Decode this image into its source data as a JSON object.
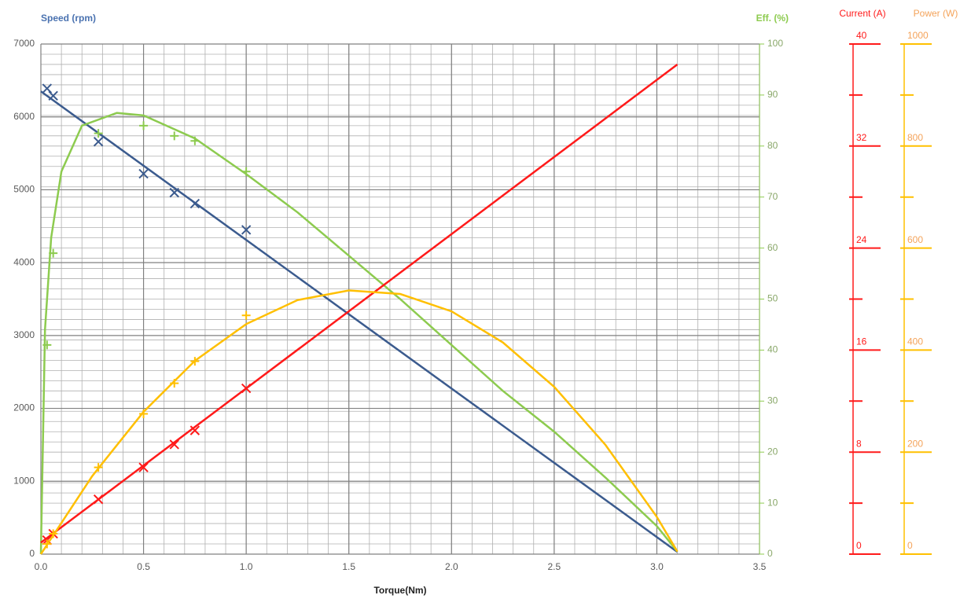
{
  "chart_data": {
    "type": "line",
    "xlabel": "Torque(Nm)",
    "xlim": [
      0,
      3.5
    ],
    "xticks": [
      {
        "value": 0,
        "label": "0.0"
      },
      {
        "value": 0.5,
        "label": "0.5"
      },
      {
        "value": 1,
        "label": "1.0"
      },
      {
        "value": 1.5,
        "label": "1.5"
      },
      {
        "value": 2,
        "label": "2.0"
      },
      {
        "value": 2.5,
        "label": "2.5"
      },
      {
        "value": 3,
        "label": "3.0"
      },
      {
        "value": 3.5,
        "label": "3.5"
      }
    ],
    "ylabel": "Speed (rpm)",
    "ylim": [
      0,
      7000
    ],
    "yticks": [
      0,
      1000,
      2000,
      3000,
      4000,
      5000,
      6000,
      7000
    ],
    "y2label": "Eff. (%)",
    "y2lim": [
      0,
      100
    ],
    "y2ticks": [
      0,
      10,
      20,
      30,
      40,
      50,
      60,
      70,
      80,
      90,
      100
    ],
    "grid": true,
    "current_axis": {
      "label": "Current (A)",
      "color": "#ff1a1a",
      "lim": [
        0,
        40
      ],
      "ticks": [
        0,
        8,
        16,
        24,
        32,
        40
      ],
      "minor_ticks": [
        4,
        12,
        20,
        28,
        36
      ]
    },
    "power_axis": {
      "label": "Power (W)",
      "color": "#ffc000",
      "lim": [
        0,
        1000
      ],
      "ticks": [
        0,
        200,
        400,
        600,
        800,
        1000
      ],
      "minor_ticks": [
        100,
        300,
        500,
        700,
        900
      ]
    },
    "series": [
      {
        "axis": "y",
        "mark": "line",
        "color": "#3b5b8e",
        "x": [
          0,
          3.1
        ],
        "values": [
          6350,
          30
        ]
      },
      {
        "axis": "y",
        "mark": "x",
        "color": "#3b5b8e",
        "x": [
          0.03,
          0.06,
          0.28,
          0.5,
          0.65,
          0.75,
          1.0
        ],
        "values": [
          6390,
          6290,
          5660,
          5220,
          4960,
          4810,
          4450
        ]
      },
      {
        "axis": "y2",
        "mark": "line",
        "color": "#8dcb4f",
        "x": [
          0,
          0.02,
          0.05,
          0.1,
          0.2,
          0.37,
          0.5,
          0.75,
          1.0,
          1.25,
          1.5,
          1.75,
          2.0,
          2.25,
          2.5,
          2.75,
          3.0,
          3.1
        ],
        "values": [
          0,
          44,
          62,
          75,
          84,
          86.5,
          86,
          81.5,
          74.5,
          67,
          58.5,
          50,
          41,
          32,
          24,
          15,
          5.5,
          0.5
        ]
      },
      {
        "axis": "y2",
        "mark": "+",
        "color": "#8dcb4f",
        "x": [
          0.03,
          0.06,
          0.28,
          0.5,
          0.65,
          0.75,
          1.0
        ],
        "values": [
          41,
          59,
          82.5,
          84,
          82,
          81,
          75
        ]
      },
      {
        "axis": "current",
        "mark": "line",
        "color": "#ff1a1a",
        "x": [
          0,
          3.1
        ],
        "values": [
          0.9,
          38.4
        ]
      },
      {
        "axis": "current",
        "mark": "x",
        "color": "#ff1a1a",
        "x": [
          0.03,
          0.06,
          0.28,
          0.5,
          0.65,
          0.75,
          1.0
        ],
        "values": [
          1.1,
          1.6,
          4.3,
          6.8,
          8.6,
          9.7,
          13.0
        ]
      },
      {
        "axis": "power",
        "mark": "line",
        "color": "#ffbf00",
        "x": [
          0,
          0.25,
          0.5,
          0.75,
          1.0,
          1.25,
          1.5,
          1.75,
          2.0,
          2.25,
          2.5,
          2.75,
          3.0,
          3.1
        ],
        "values": [
          0,
          153,
          279,
          379,
          451,
          498,
          517,
          510,
          476,
          415,
          328,
          214,
          73,
          5
        ]
      },
      {
        "axis": "power",
        "mark": "+",
        "color": "#ffbf00",
        "x": [
          0.03,
          0.06,
          0.28,
          0.5,
          0.65,
          0.75,
          1.0
        ],
        "values": [
          20,
          40,
          170,
          275,
          335,
          378,
          468
        ]
      }
    ]
  }
}
